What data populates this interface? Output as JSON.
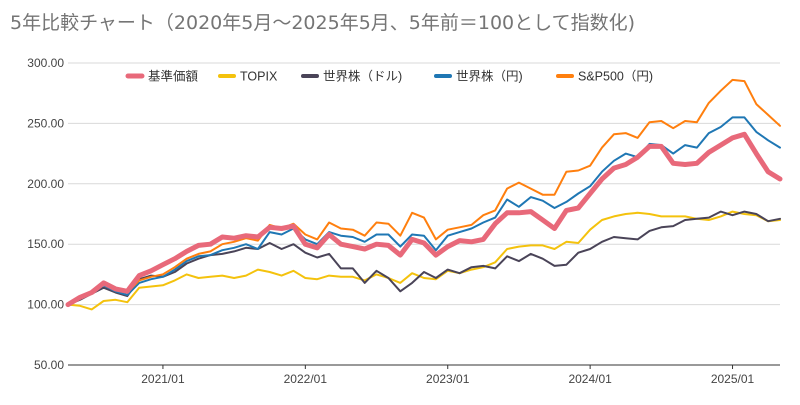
{
  "chart_data": {
    "type": "line",
    "title": "5年比較チャート（2020年5月〜2025年5月、5年前＝100として指数化)",
    "xlabel": "",
    "ylabel": "",
    "ylim": [
      50,
      300
    ],
    "yticks": [
      "50.00",
      "100.00",
      "150.00",
      "200.00",
      "250.00",
      "300.00"
    ],
    "xticks": [
      "2021/01",
      "2022/01",
      "2023/01",
      "2024/01",
      "2025/01"
    ],
    "x_start": "2020/05",
    "x_end": "2025/05",
    "grid": true,
    "legend_position": "top",
    "series": [
      {
        "name": "基準価額",
        "color": "#e8697a",
        "values": [
          100,
          106,
          110,
          118,
          113,
          111,
          124,
          128,
          133,
          138,
          144,
          149,
          150,
          156,
          155,
          157,
          156,
          164,
          163,
          165,
          150,
          147,
          158,
          150,
          148,
          146,
          150,
          149,
          141,
          154,
          151,
          141,
          148,
          153,
          152,
          154,
          167,
          176,
          176,
          177,
          170,
          163,
          178,
          180,
          192,
          204,
          213,
          216,
          222,
          231,
          231,
          217,
          216,
          217,
          226,
          232,
          238,
          241,
          225,
          210,
          204
        ]
      },
      {
        "name": "TOPIX",
        "color": "#f4c20d",
        "values": [
          100,
          99,
          96,
          103,
          104,
          102,
          114,
          115,
          116,
          120,
          125,
          122,
          123,
          124,
          122,
          124,
          129,
          127,
          124,
          128,
          122,
          121,
          124,
          123,
          123,
          120,
          125,
          122,
          118,
          126,
          122,
          121,
          128,
          126,
          129,
          131,
          135,
          146,
          148,
          149,
          149,
          146,
          152,
          151,
          162,
          170,
          173,
          175,
          176,
          175,
          173,
          173,
          173,
          171,
          170,
          173,
          177,
          175,
          174,
          169,
          170
        ]
      },
      {
        "name": "世界株（ドル)",
        "color": "#4a4458",
        "values": [
          100,
          104,
          109,
          114,
          110,
          107,
          121,
          124,
          123,
          127,
          134,
          138,
          141,
          142,
          144,
          147,
          146,
          151,
          146,
          150,
          143,
          139,
          142,
          130,
          130,
          118,
          128,
          122,
          111,
          118,
          127,
          122,
          129,
          126,
          131,
          132,
          130,
          140,
          136,
          142,
          138,
          132,
          133,
          143,
          146,
          152,
          156,
          155,
          154,
          161,
          164,
          165,
          170,
          171,
          172,
          177,
          174,
          177,
          175,
          169,
          171
        ]
      },
      {
        "name": "世界株（円)",
        "color": "#1f77b4",
        "values": [
          100,
          105,
          109,
          116,
          111,
          108,
          118,
          121,
          123,
          129,
          136,
          140,
          141,
          145,
          147,
          150,
          146,
          160,
          158,
          163,
          154,
          150,
          160,
          157,
          156,
          152,
          158,
          158,
          148,
          158,
          157,
          145,
          157,
          160,
          163,
          168,
          172,
          187,
          181,
          189,
          186,
          180,
          185,
          192,
          198,
          210,
          219,
          225,
          222,
          233,
          232,
          225,
          232,
          230,
          242,
          247,
          255,
          255,
          243,
          236,
          230
        ]
      },
      {
        "name": "S&P500（円)",
        "color": "#ff7f0e",
        "values": [
          100,
          105,
          110,
          117,
          112,
          110,
          120,
          123,
          125,
          131,
          138,
          142,
          144,
          150,
          152,
          155,
          153,
          166,
          163,
          167,
          158,
          154,
          168,
          163,
          162,
          157,
          168,
          167,
          157,
          176,
          172,
          154,
          162,
          164,
          166,
          174,
          178,
          196,
          201,
          196,
          191,
          191,
          210,
          211,
          215,
          230,
          241,
          242,
          238,
          251,
          252,
          246,
          252,
          251,
          267,
          277,
          286,
          285,
          266,
          257,
          248
        ]
      }
    ]
  }
}
